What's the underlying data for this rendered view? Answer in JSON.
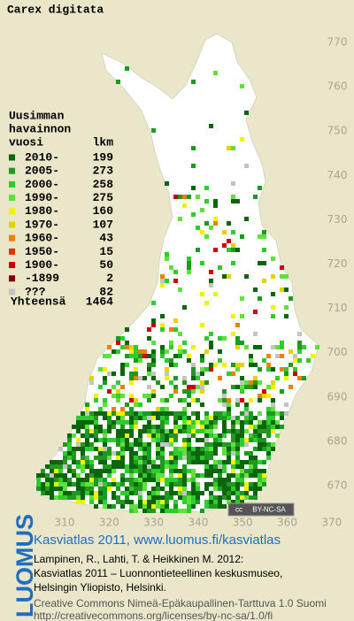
{
  "title": "Carex digitata",
  "legend": {
    "header": [
      "Uusimman",
      "havainnon",
      "vuosi"
    ],
    "count_header": "lkm",
    "rows": [
      {
        "label": "2010-",
        "count": 199,
        "color": "#0b660b"
      },
      {
        "label": "2005-",
        "count": 273,
        "color": "#1f991f"
      },
      {
        "label": "2000-",
        "count": 258,
        "color": "#2ecc2e"
      },
      {
        "label": "1990-",
        "count": 275,
        "color": "#5fe03a"
      },
      {
        "label": "1980-",
        "count": 160,
        "color": "#f2f200"
      },
      {
        "label": "1970-",
        "count": 107,
        "color": "#e6d200"
      },
      {
        "label": "1960-",
        "count": 43,
        "color": "#f08000"
      },
      {
        "label": "1950-",
        "count": 15,
        "color": "#e03000"
      },
      {
        "label": "1900-",
        "count": 50,
        "color": "#cc0000"
      },
      {
        "label": "-1899",
        "count": 2,
        "color": "#800000"
      },
      {
        "label": "???",
        "count": 82,
        "color": "#c4c4c4"
      }
    ],
    "total_label": "Yhteensä",
    "total": 1464
  },
  "map": {
    "y_ticks": [
      770,
      760,
      750,
      740,
      730,
      720,
      710,
      700,
      690,
      680,
      670
    ],
    "x_ticks": [
      310,
      320,
      330,
      340,
      350,
      360,
      370
    ]
  },
  "license_badge": {
    "icon": "cc",
    "text": "BY-NC-SA"
  },
  "footer": {
    "logo": "LUOMUS",
    "heading": "Kasviatlas 2011, www.luomus.fi/kasviatlas",
    "citation": [
      "Lampinen, R., Lahti, T. & Heikkinen M. 2012:",
      "Kasviatlas 2011 – Luonnontieteellinen keskusmuseo,",
      "Helsingin Yliopisto, Helsinki."
    ],
    "license": [
      "Creative Commons Nimeä-Epäkaupallinen-Tarttuva 1.0 Suomi",
      "http://creativecommons.org/licenses/by-nc-sa/1.0/fi"
    ]
  }
}
